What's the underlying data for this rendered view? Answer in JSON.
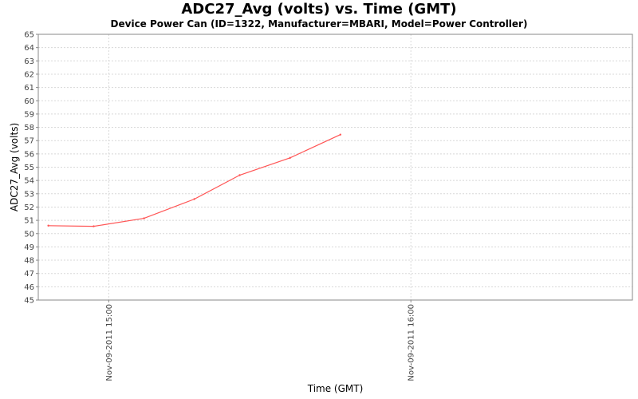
{
  "chart_data": {
    "type": "line",
    "title": "ADC27_Avg (volts) vs. Time (GMT)",
    "subtitle": "Device Power Can (ID=1322, Manufacturer=MBARI, Model=Power Controller)",
    "xlabel": "Time (GMT)",
    "ylabel": "ADC27_Avg (volts)",
    "ylim": [
      45,
      65
    ],
    "y_ticks": [
      45,
      46,
      47,
      48,
      49,
      50,
      51,
      52,
      53,
      54,
      55,
      56,
      57,
      58,
      59,
      60,
      61,
      62,
      63,
      64,
      65
    ],
    "x_range_minutes": [
      -14,
      104
    ],
    "x_ticks": [
      {
        "minutes": 0,
        "label": "Nov-09-2011 15:00"
      },
      {
        "minutes": 60,
        "label": "Nov-09-2011 16:00"
      }
    ],
    "grid": true,
    "series": [
      {
        "name": "ADC27_Avg",
        "color": "#ff5555",
        "x_minutes": [
          -12,
          -3,
          7,
          17,
          26,
          36,
          46
        ],
        "y": [
          50.6,
          50.55,
          51.15,
          52.6,
          54.4,
          55.7,
          57.45
        ]
      }
    ]
  },
  "colors": {
    "grid": "#d8d8d8",
    "axis": "#888888",
    "line": "#ff5555"
  }
}
